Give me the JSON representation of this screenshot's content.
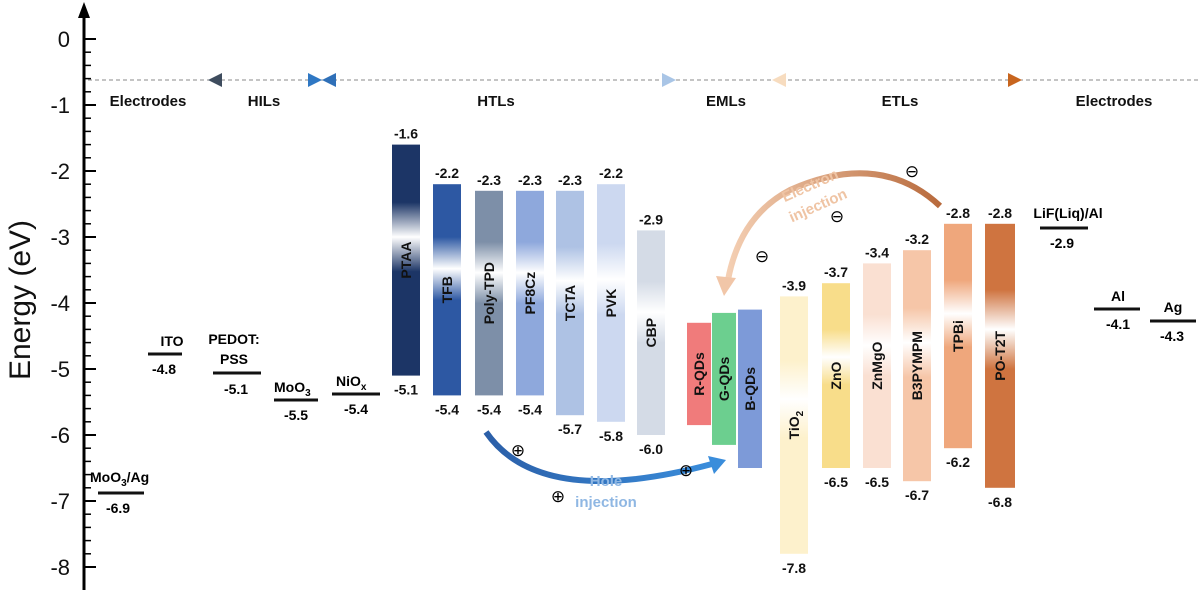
{
  "axis": {
    "label": "Energy (eV)",
    "ticks": [
      "0",
      "-1",
      "-2",
      "-3",
      "-4",
      "-5",
      "-6",
      "-7",
      "-8"
    ]
  },
  "sections": {
    "electrodes_left": "Electrodes",
    "hils": "HILs",
    "htls": "HTLs",
    "emls": "EMLs",
    "etls": "ETLs",
    "electrodes_right": "Electrodes"
  },
  "levels": [
    {
      "name": "MoO3/Ag",
      "value": "-6.9",
      "energy": -6.9
    },
    {
      "name": "ITO",
      "value": "-4.8",
      "energy": -4.8
    },
    {
      "name": "PEDOT:",
      "name2": "PSS",
      "value": "-5.1",
      "energy": -5.1
    },
    {
      "name": "MoO3",
      "value": "-5.5",
      "energy": -5.5
    },
    {
      "name": "NiOx",
      "value": "-5.4",
      "energy": -5.4
    },
    {
      "name": "LiF(Liq)/Al",
      "value": "-2.9",
      "energy": -2.9
    },
    {
      "name": "Al",
      "value": "-4.1",
      "energy": -4.1
    },
    {
      "name": "Ag",
      "value": "-4.3",
      "energy": -4.3
    }
  ],
  "bars": [
    {
      "name": "PTAA",
      "top": "-1.6",
      "bottom": "-5.1",
      "top_energy": -1.6,
      "bottom_energy": -5.1,
      "color": "#1c3566"
    },
    {
      "name": "TFB",
      "top": "-2.2",
      "bottom": "-5.4",
      "top_energy": -2.2,
      "bottom_energy": -5.4,
      "color": "#2d58a3"
    },
    {
      "name": "Poly-TPD",
      "top": "-2.3",
      "bottom": "-5.4",
      "top_energy": -2.3,
      "bottom_energy": -5.4,
      "color": "#7d8fa8"
    },
    {
      "name": "PF8Cz",
      "top": "-2.3",
      "bottom": "-5.4",
      "top_energy": -2.3,
      "bottom_energy": -5.4,
      "color": "#8ea8dc"
    },
    {
      "name": "TCTA",
      "top": "-2.3",
      "bottom": "-5.7",
      "top_energy": -2.3,
      "bottom_energy": -5.7,
      "color": "#aec2e4"
    },
    {
      "name": "PVK",
      "top": "-2.2",
      "bottom": "-5.8",
      "top_energy": -2.2,
      "bottom_energy": -5.8,
      "color": "#ccd8f0"
    },
    {
      "name": "CBP",
      "top": "-2.9",
      "bottom": "-6.0",
      "top_energy": -2.9,
      "bottom_energy": -6.0,
      "color": "#d4dbe6"
    },
    {
      "name": "R-QDs",
      "top_energy": -4.3,
      "bottom_energy": -5.85,
      "color": "#f07b7b"
    },
    {
      "name": "G-QDs",
      "top_energy": -4.15,
      "bottom_energy": -6.15,
      "color": "#6ccf8f"
    },
    {
      "name": "B-QDs",
      "top_energy": -4.1,
      "bottom_energy": -6.5,
      "color": "#7d9ad8"
    },
    {
      "name": "TiO2",
      "top": "-3.9",
      "bottom": "-7.8",
      "top_energy": -3.9,
      "bottom_energy": -7.8,
      "color": "#fdf1cc"
    },
    {
      "name": "ZnO",
      "top": "-3.7",
      "bottom": "-6.5",
      "top_energy": -3.7,
      "bottom_energy": -6.5,
      "color": "#f8dd8a"
    },
    {
      "name": "ZnMgO",
      "top": "-3.4",
      "bottom": "-6.5",
      "top_energy": -3.4,
      "bottom_energy": -6.5,
      "color": "#fae0d2"
    },
    {
      "name": "B3PYMPM",
      "top": "-3.2",
      "bottom": "-6.7",
      "top_energy": -3.2,
      "bottom_energy": -6.7,
      "color": "#f6c6a8"
    },
    {
      "name": "TPBi",
      "top": "-2.8",
      "bottom": "-6.2",
      "top_energy": -2.8,
      "bottom_energy": -6.2,
      "color": "#efa77c"
    },
    {
      "name": "PO-T2T",
      "top": "-2.8",
      "bottom": "-6.8",
      "top_energy": -2.8,
      "bottom_energy": -6.8,
      "color": "#cf7440"
    }
  ],
  "injection": {
    "hole_label_1": "Hole",
    "hole_label_2": "injection",
    "electron_label_1": "Electron",
    "electron_label_2": "injection",
    "plus": "⊕",
    "minus": "⊖"
  }
}
